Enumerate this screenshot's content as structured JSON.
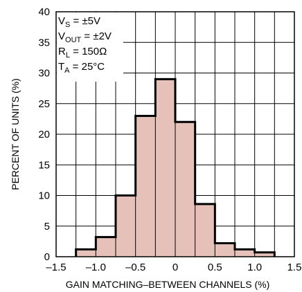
{
  "chart_data": {
    "type": "bar",
    "xlabel": "GAIN MATCHING–BETWEEN CHANNELS (%)",
    "ylabel": "PERCENT OF UNITS (%)",
    "xlim": [
      -1.5,
      1.5
    ],
    "ylim": [
      0,
      40
    ],
    "x_ticks": [
      -1.5,
      -1.0,
      -0.5,
      0,
      0.5,
      1.0,
      1.5
    ],
    "x_tick_labels": [
      "–1.5",
      "–1.0",
      "–0.5",
      "0",
      "0.5",
      "1.0",
      "1.5"
    ],
    "y_ticks": [
      0,
      5,
      10,
      15,
      20,
      25,
      30,
      35,
      40
    ],
    "y_tick_labels": [
      "0",
      "5",
      "10",
      "15",
      "20",
      "25",
      "30",
      "35",
      "40"
    ],
    "grid": true,
    "bins": [
      {
        "from": -1.25,
        "to": -1.0,
        "value": 1.2
      },
      {
        "from": -1.0,
        "to": -0.75,
        "value": 3.2
      },
      {
        "from": -0.75,
        "to": -0.5,
        "value": 10.0
      },
      {
        "from": -0.5,
        "to": -0.25,
        "value": 23.0
      },
      {
        "from": -0.25,
        "to": 0.0,
        "value": 29.0
      },
      {
        "from": 0.0,
        "to": 0.25,
        "value": 22.0
      },
      {
        "from": 0.25,
        "to": 0.5,
        "value": 8.6
      },
      {
        "from": 0.5,
        "to": 0.75,
        "value": 2.2
      },
      {
        "from": 0.75,
        "to": 1.0,
        "value": 1.2
      },
      {
        "from": 1.0,
        "to": 1.25,
        "value": 0.7
      }
    ],
    "bar_fill": "#e5c1ba",
    "conditions": [
      {
        "main": "V",
        "sub": "S",
        "rest": " = ±5V"
      },
      {
        "main": "V",
        "sub": "OUT",
        "rest": " = ±2V"
      },
      {
        "main": "R",
        "sub": "L",
        "rest": " = 150Ω"
      },
      {
        "main": "T",
        "sub": "A",
        "rest": " = 25°C"
      }
    ]
  }
}
